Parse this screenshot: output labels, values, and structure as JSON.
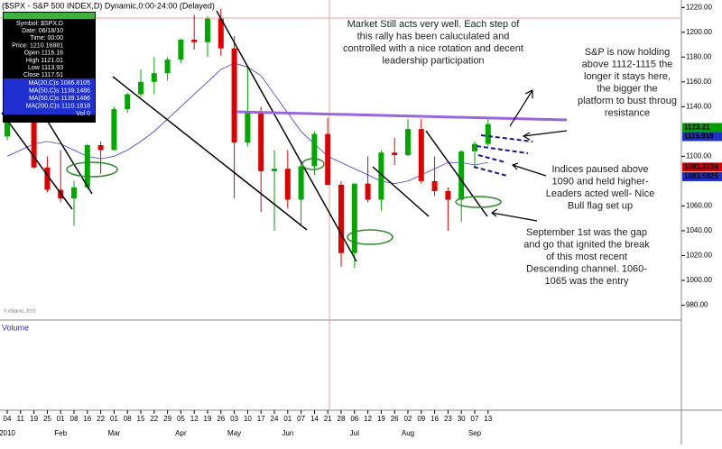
{
  "chart_data": {
    "type": "candlestick",
    "title": "($SPX - S&P 500 INDEX,D) Dynamic,0:00-24:00 (Delayed)",
    "categories": [
      "04",
      "11",
      "19",
      "25",
      "01",
      "08",
      "16",
      "22",
      "01",
      "08",
      "15",
      "22",
      "29",
      "05",
      "12",
      "19",
      "26",
      "03",
      "10",
      "17",
      "24",
      "01",
      "07",
      "14",
      "21",
      "28",
      "06",
      "12",
      "19",
      "26",
      "02",
      "09",
      "16",
      "23",
      "30",
      "07",
      "13"
    ],
    "months": [
      "2010",
      "Feb",
      "Mar",
      "Apr",
      "May",
      "Jun",
      "Jul",
      "Aug",
      "Sep"
    ],
    "open": [
      1116,
      1144,
      1136,
      1091,
      1073,
      1066,
      1075,
      1109,
      1105,
      1138,
      1150,
      1160,
      1167,
      1178,
      1194,
      1192,
      1211,
      1187,
      1111,
      1136,
      1088,
      1090,
      1065,
      1092,
      1118,
      1077,
      1022,
      1078,
      1065,
      1103,
      1101,
      1122,
      1080,
      1072,
      1065,
      1104,
      1110
    ],
    "high": [
      1150,
      1150,
      1150,
      1100,
      1105,
      1080,
      1110,
      1112,
      1140,
      1151,
      1170,
      1180,
      1180,
      1195,
      1214,
      1213,
      1219,
      1197,
      1173,
      1140,
      1105,
      1105,
      1095,
      1120,
      1131,
      1080,
      1078,
      1100,
      1105,
      1115,
      1130,
      1130,
      1100,
      1075,
      1105,
      1112,
      1130
    ],
    "low": [
      1113,
      1131,
      1090,
      1071,
      1063,
      1044,
      1074,
      1086,
      1105,
      1135,
      1148,
      1150,
      1161,
      1175,
      1186,
      1180,
      1181,
      1066,
      1108,
      1055,
      1040,
      1058,
      1045,
      1085,
      1077,
      1011,
      1010,
      1063,
      1056,
      1093,
      1100,
      1078,
      1068,
      1040,
      1047,
      1090,
      1108
    ],
    "close": [
      1144,
      1136,
      1091,
      1073,
      1066,
      1075,
      1109,
      1105,
      1138,
      1150,
      1160,
      1167,
      1178,
      1194,
      1192,
      1211,
      1187,
      1111,
      1136,
      1088,
      1090,
      1065,
      1092,
      1118,
      1077,
      1022,
      1078,
      1065,
      1103,
      1101,
      1122,
      1080,
      1072,
      1065,
      1104,
      1110,
      1126
    ],
    "up_color": "#00a800",
    "down_color": "#e00000",
    "series": [
      {
        "name": "MA(50,C)s 1139.1486",
        "color": "#3a3adc",
        "values": [
          1100,
          1105,
          1110,
          1112,
          1110,
          1105,
          1100,
          1098,
          1100,
          1105,
          1112,
          1120,
          1130,
          1140,
          1150,
          1160,
          1170,
          1175,
          1172,
          1165,
          1150,
          1135,
          1120,
          1110,
          1100,
          1095,
          1090,
          1085,
          1080,
          1078,
          1080,
          1085,
          1090,
          1095,
          1095,
          1093,
          1095
        ]
      }
    ],
    "ylim": [
      968,
      1226
    ],
    "yticks": [
      {
        "value": 1220,
        "label": "1220.00"
      },
      {
        "value": 1200,
        "label": "1200.00"
      },
      {
        "value": 1180,
        "label": "1180.00"
      },
      {
        "value": 1160,
        "label": "1160.00"
      },
      {
        "value": 1140,
        "label": "1140.00"
      },
      {
        "value": 1100,
        "label": "1100.00"
      },
      {
        "value": 1060,
        "label": "1060.00"
      },
      {
        "value": 1040,
        "label": "1040.00"
      },
      {
        "value": 1020,
        "label": "1020.00"
      },
      {
        "value": 1000,
        "label": "1000.00"
      },
      {
        "value": 980,
        "label": "980.00"
      }
    ],
    "price_tags": [
      {
        "value": 1123.21,
        "label": "1123.21",
        "color": "#00a000"
      },
      {
        "value": 1115.918,
        "label": "1115.918",
        "color": "#2030c0"
      },
      {
        "value": 1091.2724,
        "label": "1091.2724",
        "color": "#d00000"
      },
      {
        "value": 1083.5825,
        "label": "1083.5825",
        "color": "#2030c0"
      }
    ],
    "volume_label": "Volume",
    "copyright": "© eSignal, 2010",
    "annotations": [
      [
        "Market Still acts very well.  Each step of",
        "this rally has been caluculated and",
        "controlled with a nice rotation and decent",
        "leadership participation"
      ],
      [
        "S&P is now holding",
        "above 1112-1115 the",
        "longer it stays here,",
        "the bigger the",
        "platform to bust throug",
        "resistance"
      ],
      [
        "Indices paused above",
        "1090 and held higher-",
        "Leaders acted well- Nice",
        "Bull flag set up"
      ],
      [
        "September 1st was the gap",
        "and go that ignited the break",
        "of this most recent",
        "Descending channel.  1060-",
        "1065 was the entry"
      ]
    ]
  },
  "info_box": {
    "header": " ",
    "rows": [
      "Symbol: $SPX.D",
      "Date: 06/18/10",
      "Time: 00:00",
      "Price: 1210.16881",
      "Open 1116.16",
      "High 1121.01",
      "Low 1113.93",
      "Close 1117.51"
    ],
    "ma_rows": [
      "MA(20,C)s 1086.8105",
      "MA(50,C)s 1139.1486",
      "MA(50,C)s 1139.1486",
      "MA(200,C)s 1110.1818",
      "Vol 0"
    ]
  }
}
